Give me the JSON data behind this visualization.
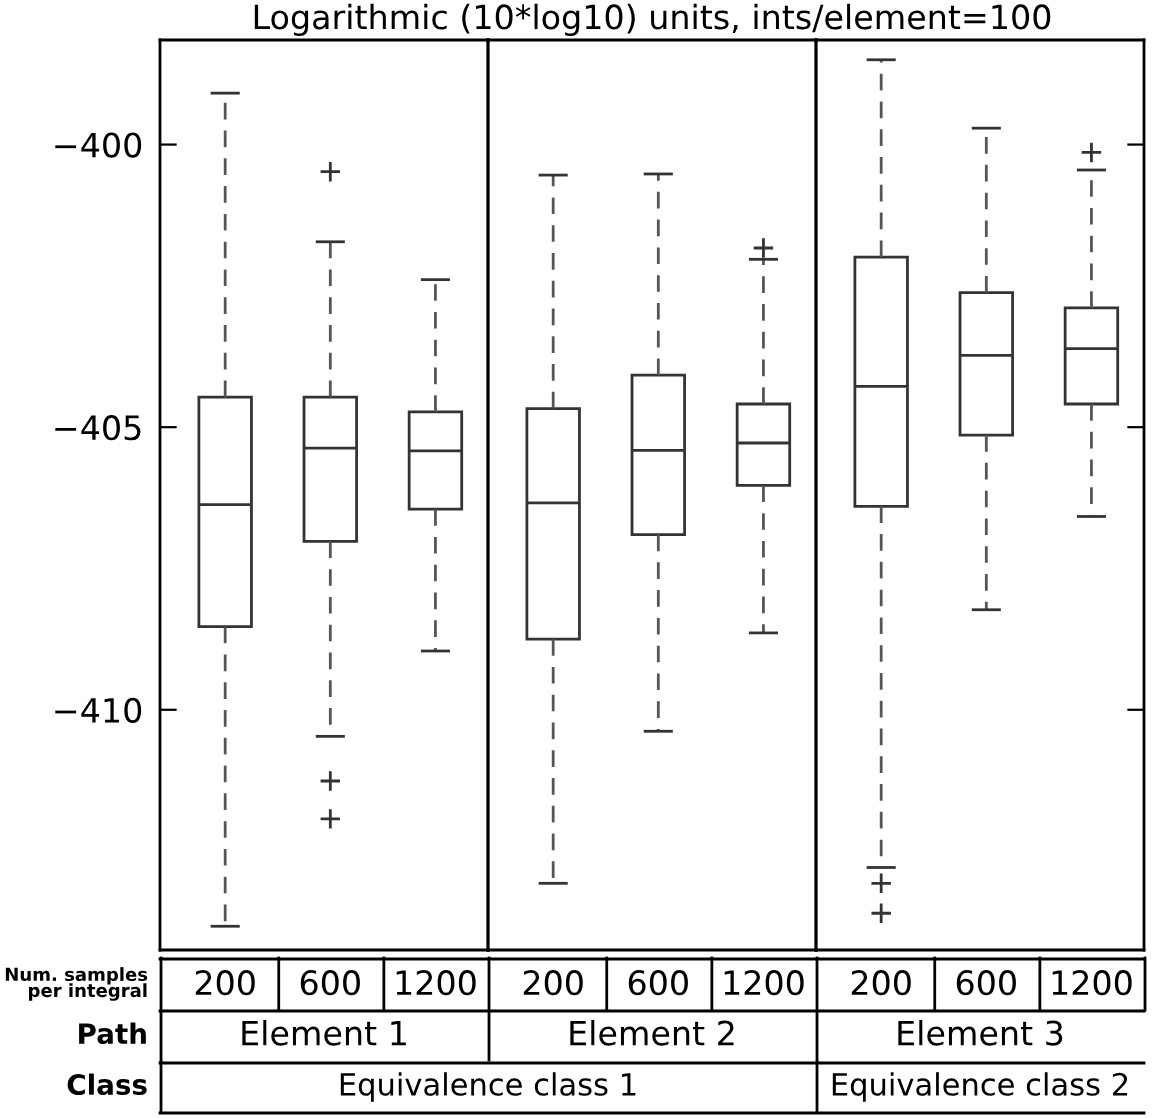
{
  "chart_data": [
    {
      "type": "box",
      "title": "Logarithmic (10*log10) units, ints/element=100",
      "categories": [
        "200",
        "600",
        "1200"
      ],
      "xlabel": "Element 1",
      "boxes": [
        {
          "low": -413.83,
          "q1": -408.53,
          "median": -406.37,
          "q3": -404.47,
          "high": -399.09
        },
        {
          "low": -410.47,
          "q1": -407.02,
          "median": -405.37,
          "q3": -404.47,
          "high": -401.72,
          "outliers": [
            -400.48,
            -411.26,
            -411.93
          ]
        },
        {
          "low": -408.96,
          "q1": -406.45,
          "median": -405.42,
          "q3": -404.73,
          "high": -402.39
        }
      ],
      "ylim": [
        -414.25,
        -398.15
      ],
      "yticks": [
        {
          "value": -400,
          "label": "−400"
        },
        {
          "value": -405,
          "label": "−405"
        },
        {
          "value": -410,
          "label": "−410"
        }
      ],
      "annotations": [
        "Num. samples per integral",
        "Path",
        "Class",
        "Equivalence class 1"
      ]
    },
    {
      "type": "box",
      "categories": [
        "200",
        "600",
        "1200"
      ],
      "xlabel": "Element 2",
      "tick_labels": "x",
      "boxes": [
        {
          "low": -413.07,
          "q1": -408.75,
          "median": -406.34,
          "q3": -404.67,
          "high": -400.54
        },
        {
          "low": -410.38,
          "q1": -406.9,
          "median": -405.41,
          "q3": -404.08,
          "high": -400.52
        },
        {
          "low": -408.64,
          "q1": -406.03,
          "median": -405.28,
          "q3": -404.59,
          "high": -402.03,
          "outliers": [
            -401.83
          ]
        }
      ],
      "ylim": [
        -414.25,
        -398.15
      ],
      "yticks": [
        -400,
        -405,
        -410
      ]
    },
    {
      "type": "box",
      "categories": [
        "200",
        "600",
        "1200"
      ],
      "xlabel": "Element 3",
      "tick_labels": "x",
      "boxes": [
        {
          "low": -412.79,
          "q1": -406.4,
          "median": -404.28,
          "q3": -401.99,
          "high": -398.5,
          "outliers": [
            -413.07,
            -413.6
          ]
        },
        {
          "low": -408.23,
          "q1": -405.14,
          "median": -403.73,
          "q3": -402.62,
          "high": -399.71
        },
        {
          "low": -406.58,
          "q1": -404.59,
          "median": -403.61,
          "q3": -402.89,
          "high": -400.45,
          "outliers": [
            -400.14
          ]
        }
      ],
      "ylim": [
        -414.25,
        -398.15
      ],
      "yticks": [
        -400,
        -405,
        -410
      ],
      "annotations": [
        "Equivalence class 2"
      ]
    }
  ]
}
